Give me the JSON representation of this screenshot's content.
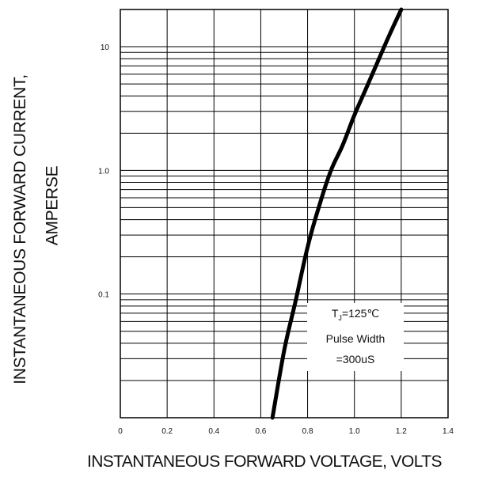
{
  "chart_data": {
    "type": "line",
    "x_axis": {
      "label": "INSTANTANEOUS FORWARD VOLTAGE,  VOLTS",
      "range": [
        0,
        1.4
      ],
      "ticks": [
        0,
        0.2,
        0.4,
        0.6,
        0.8,
        1.0,
        1.2,
        1.4
      ],
      "tick_labels": [
        "0",
        "0.2",
        "0.4",
        "0.6",
        "0.8",
        "1.0",
        "1.2",
        "1.4"
      ]
    },
    "y_axis": {
      "label_line1": "INSTANTANEOUS FORWARD CURRENT,",
      "label_line2": "AMPERSE",
      "scale": "log",
      "range": [
        0.01,
        20
      ],
      "tick_labels": [
        {
          "value": 10,
          "text": "10"
        },
        {
          "value": 1,
          "text": "1.0"
        },
        {
          "value": 0.1,
          "text": "0.1"
        }
      ]
    },
    "grid": true,
    "series": [
      {
        "x": [
          0.65,
          0.7,
          0.75,
          0.8,
          0.85,
          0.9,
          0.95,
          1.0,
          1.05,
          1.1,
          1.15,
          1.2
        ],
        "y": [
          0.01,
          0.035,
          0.09,
          0.24,
          0.52,
          1.0,
          1.6,
          2.8,
          4.6,
          7.6,
          12.5,
          20
        ],
        "color": "#000000"
      }
    ],
    "annotation": {
      "line1_main": "T",
      "line1_sub": "J",
      "line1_rest": "=125℃",
      "line2": "Pulse Width",
      "line3": "=300uS"
    }
  }
}
